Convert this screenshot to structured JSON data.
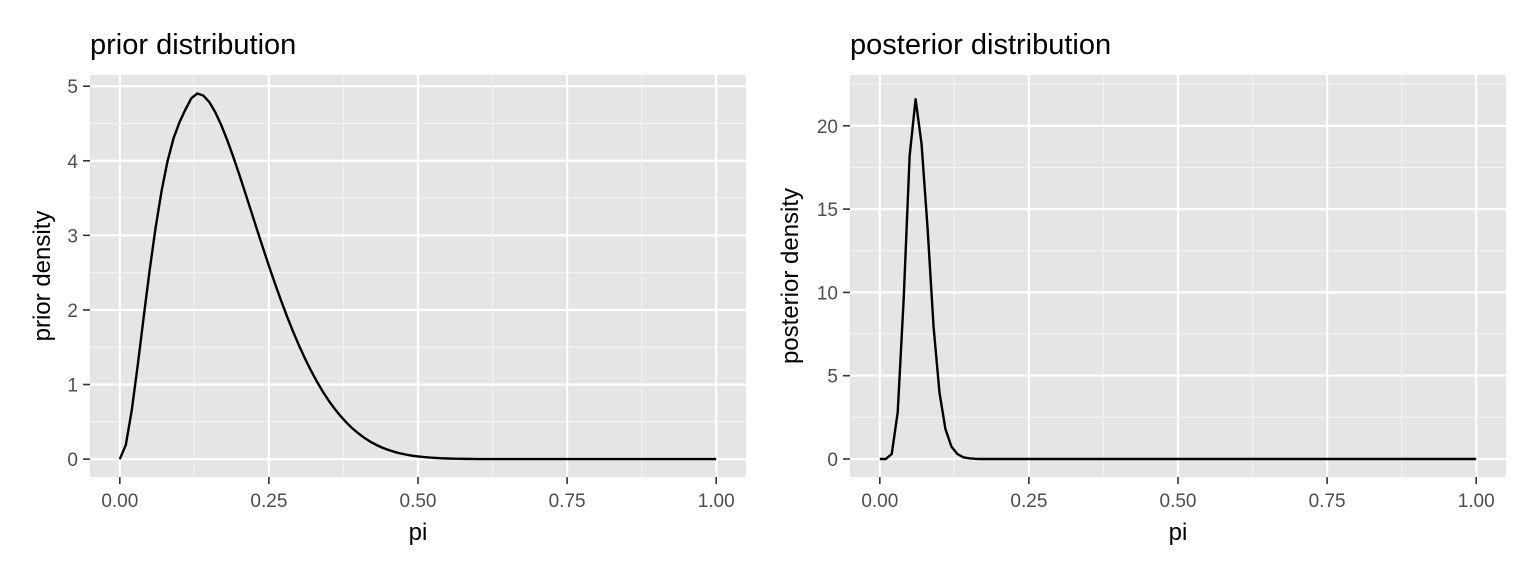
{
  "chart_data": [
    {
      "type": "line",
      "title": "prior distribution",
      "xlabel": "pi",
      "ylabel": "prior density",
      "xlim": [
        -0.05,
        1.05
      ],
      "ylim": [
        -0.24,
        5.15
      ],
      "x_ticks": [
        0,
        0.25,
        0.5,
        0.75,
        1
      ],
      "x_tick_labels": [
        "0.00",
        "0.25",
        "0.50",
        "0.75",
        "1.00"
      ],
      "y_ticks": [
        0,
        1,
        2,
        3,
        4,
        5
      ],
      "y_tick_labels": [
        "0",
        "1",
        "2",
        "3",
        "4",
        "5"
      ],
      "grid": true,
      "legend": "none",
      "series": [
        {
          "x": [
            0,
            0.01,
            0.02,
            0.03,
            0.04,
            0.05,
            0.06,
            0.07,
            0.08,
            0.09,
            0.1,
            0.11,
            0.12,
            0.13,
            0.14,
            0.15,
            0.16,
            0.17,
            0.18,
            0.19,
            0.2,
            0.21,
            0.22,
            0.23,
            0.24,
            0.25,
            0.26,
            0.27,
            0.28,
            0.29,
            0.3,
            0.31,
            0.32,
            0.33,
            0.34,
            0.35,
            0.36,
            0.37,
            0.38,
            0.39,
            0.4,
            0.41,
            0.42,
            0.43,
            0.44,
            0.45,
            0.46,
            0.47,
            0.48,
            0.49,
            0.5,
            0.51,
            0.52,
            0.53,
            0.54,
            0.55,
            0.56,
            0.57,
            0.58,
            0.59,
            0.6,
            0.62,
            0.64,
            0.66,
            0.68,
            0.7,
            0.75,
            0.8,
            0.85,
            0.9,
            0.95,
            1.0
          ],
          "y": [
            0,
            0.188,
            0.654,
            1.257,
            1.903,
            2.532,
            3.103,
            3.594,
            3.995,
            4.3,
            4.515,
            4.687,
            4.839,
            4.902,
            4.875,
            4.788,
            4.652,
            4.48,
            4.279,
            4.058,
            3.822,
            3.578,
            3.329,
            3.079,
            2.833,
            2.591,
            2.358,
            2.134,
            1.921,
            1.72,
            1.532,
            1.357,
            1.195,
            1.046,
            0.91,
            0.787,
            0.677,
            0.578,
            0.49,
            0.412,
            0.345,
            0.285,
            0.234,
            0.191,
            0.154,
            0.124,
            0.098,
            0.077,
            0.06,
            0.046,
            0.035,
            0.027,
            0.02,
            0.015,
            0.011,
            0.008,
            0.006,
            0.004,
            0.003,
            0.002,
            0.001,
            0.0005,
            0.0002,
            0.0001,
            0,
            0,
            0,
            0,
            0,
            0,
            0,
            0
          ]
        }
      ]
    },
    {
      "type": "line",
      "title": "posterior distribution",
      "xlabel": "pi",
      "ylabel": "posterior density",
      "xlim": [
        -0.05,
        1.05
      ],
      "ylim": [
        -1.08,
        23.05
      ],
      "x_ticks": [
        0,
        0.25,
        0.5,
        0.75,
        1
      ],
      "x_tick_labels": [
        "0.00",
        "0.25",
        "0.50",
        "0.75",
        "1.00"
      ],
      "y_ticks": [
        0,
        5,
        10,
        15,
        20
      ],
      "y_tick_labels": [
        "0",
        "5",
        "10",
        "15",
        "20"
      ],
      "grid": true,
      "legend": "none",
      "series": [
        {
          "x": [
            0,
            0.01,
            0.02,
            0.03,
            0.04,
            0.05,
            0.06,
            0.07,
            0.08,
            0.09,
            0.1,
            0.11,
            0.12,
            0.13,
            0.14,
            0.15,
            0.16,
            0.17,
            0.2,
            0.3,
            0.5,
            0.75,
            1.0
          ],
          "y": [
            0,
            0,
            0.3,
            2.8,
            9.6,
            18.2,
            21.6,
            18.9,
            13.9,
            8.0,
            4.0,
            1.8,
            0.75,
            0.3,
            0.1,
            0.04,
            0.01,
            0,
            0,
            0,
            0,
            0,
            0
          ]
        }
      ]
    }
  ]
}
